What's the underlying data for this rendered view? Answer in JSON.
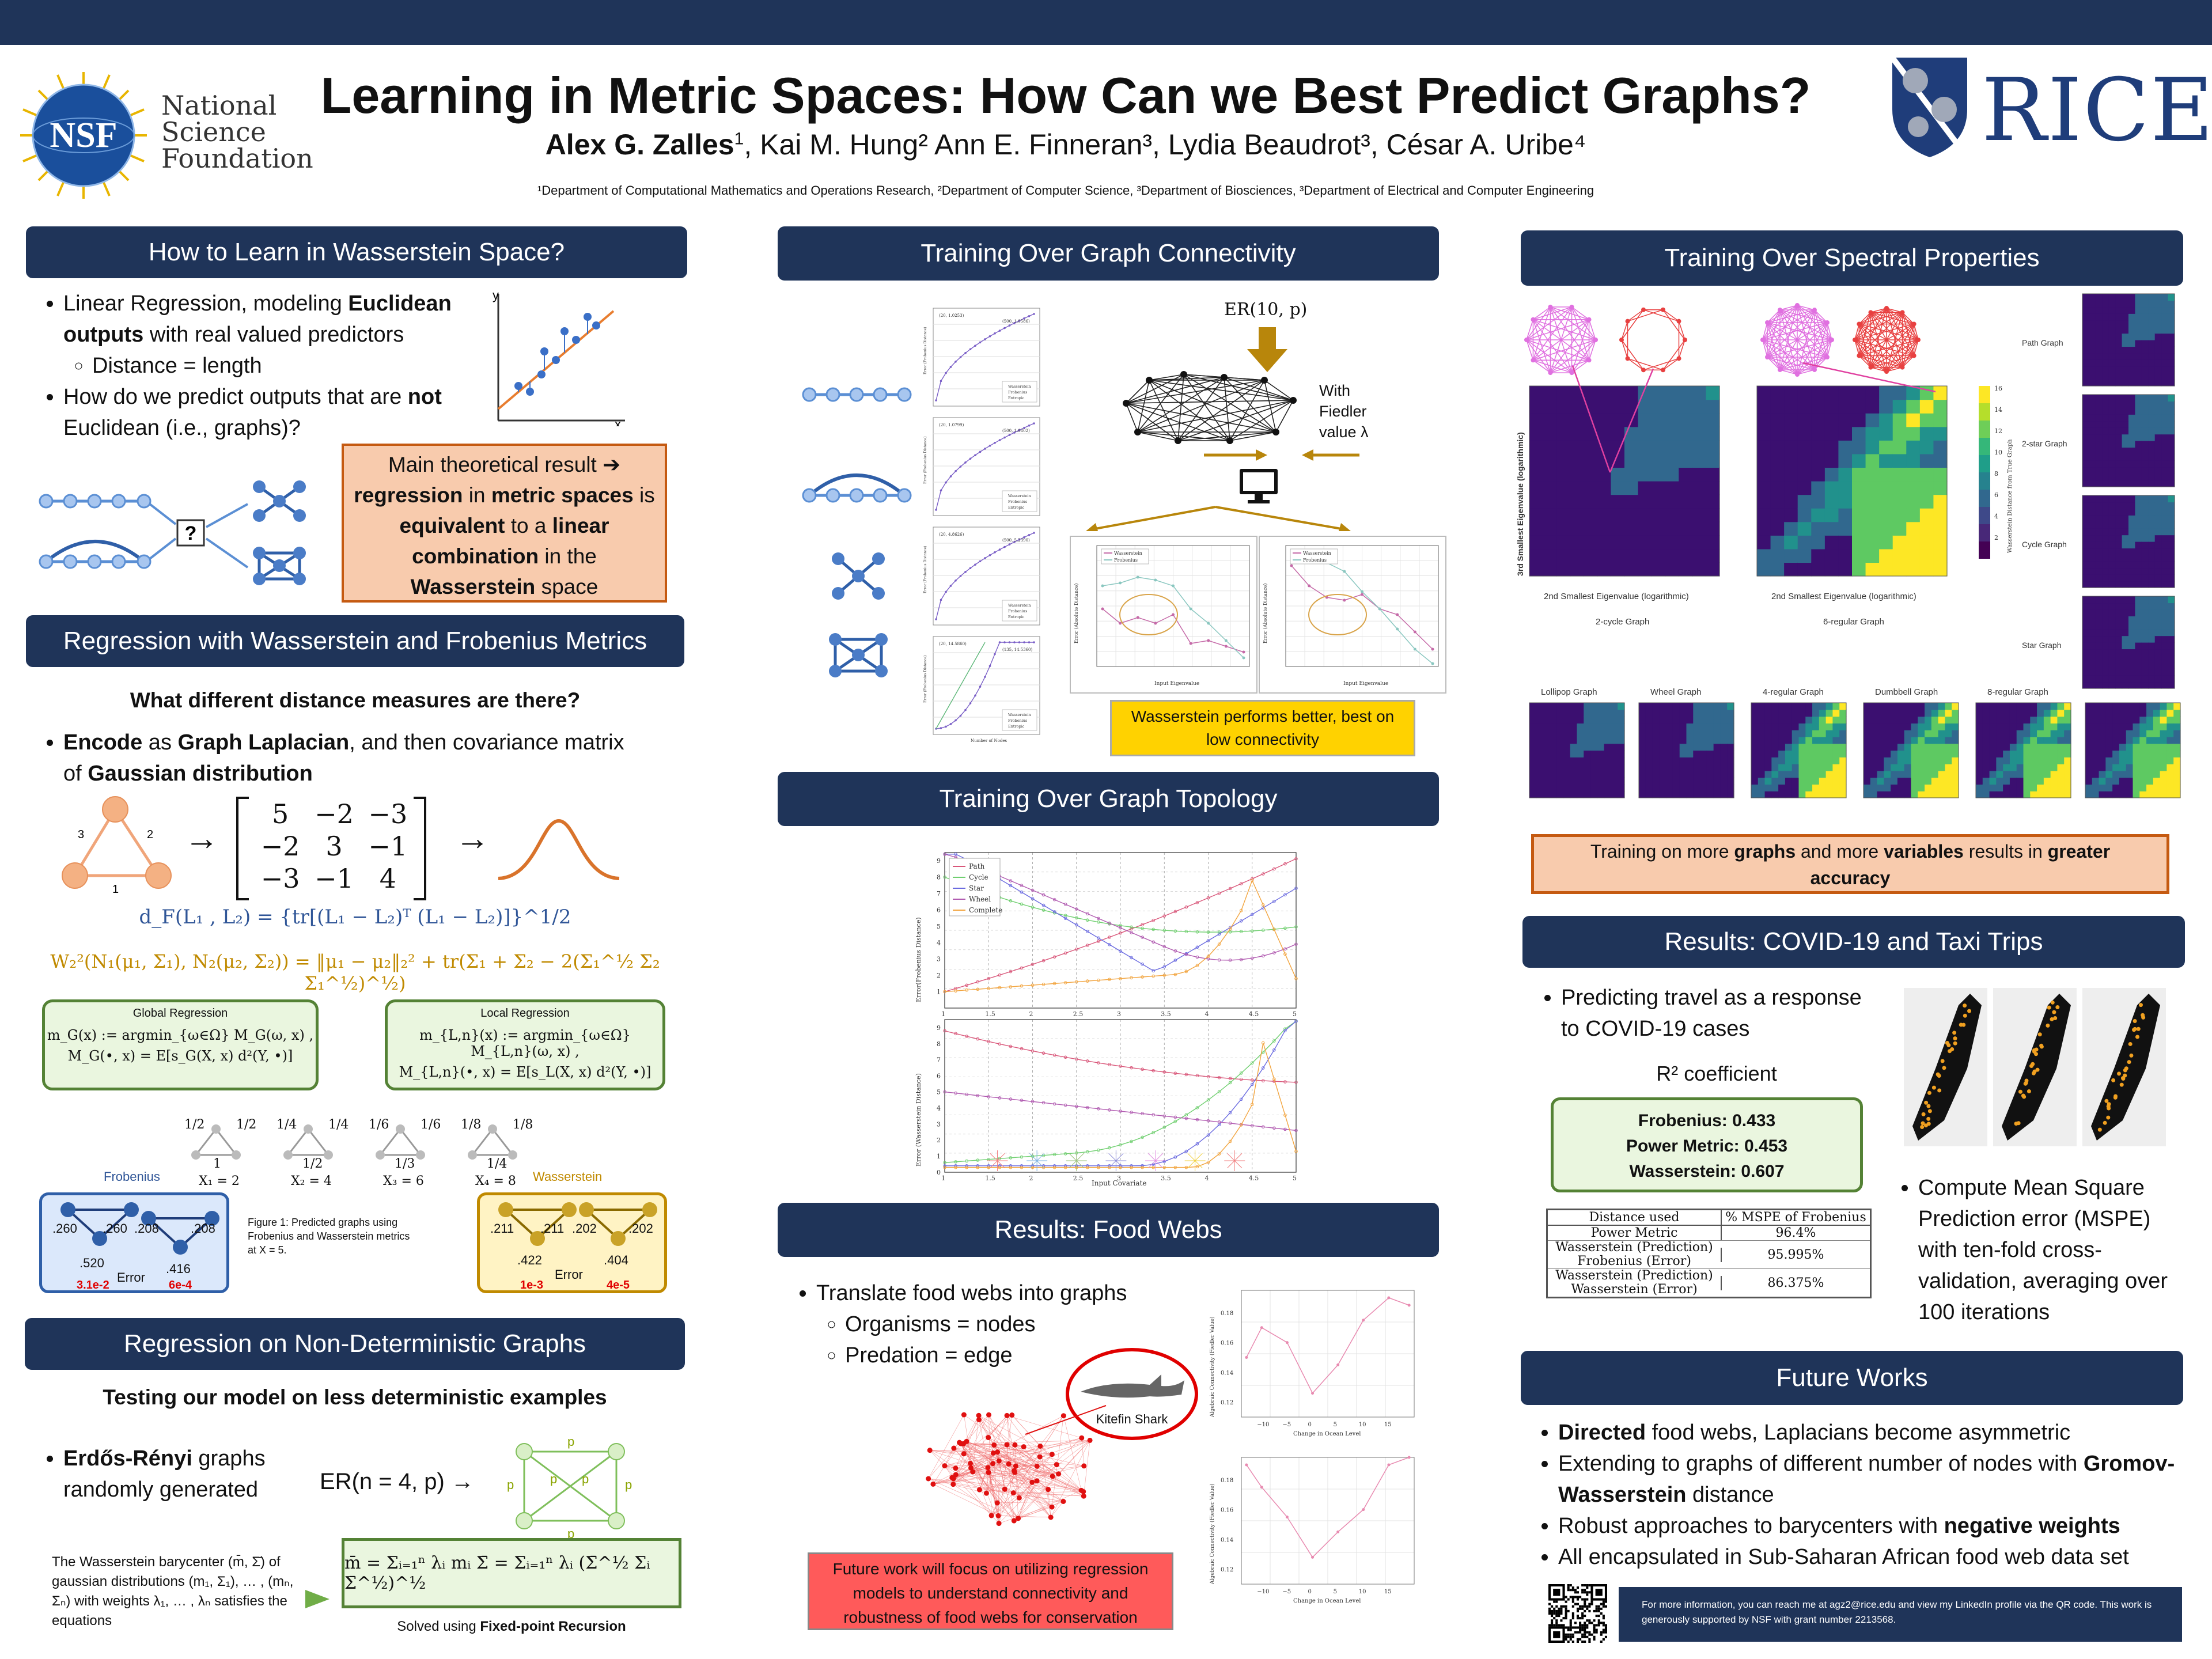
{
  "title": "Learning in Metric Spaces: How Can we Best Predict Graphs?",
  "authors": {
    "first": "Alex G. Zalles",
    "first_sup": "1",
    "rest": ", Kai M. Hung² Ann E. Finneran³, Lydia Beaudrot³, César A. Uribe⁴"
  },
  "affiliations": "¹Department of Computational Mathematics and Operations Research, ²Department of Computer Science, ³Department of Biosciences, ³Department of Electrical and Computer Engineering",
  "logos": {
    "nsf_mark": "NSF",
    "nsf_text": [
      "National",
      "Science",
      "Foundation"
    ],
    "rice": "RICE"
  },
  "sec1": {
    "header": "How to Learn in Wasserstein Space?",
    "b1_pre": "Linear Regression, modeling ",
    "b1_bold1": "Euclidean outputs",
    "b1_post": " with real valued predictors",
    "b1_sub": "Distance = length",
    "b2_pre": "How do we predict outputs that are ",
    "b2_bold": "not",
    "b2_post": " Euclidean (i.e., graphs)?",
    "axis_y": "y",
    "axis_x": "x",
    "qmark": "?",
    "result": {
      "l1": "Main theoretical result ➔",
      "l2a": "regression",
      "l2b": " in ",
      "l2c": "metric spaces",
      "l2d": " is",
      "l3": "equivalent",
      "l3b": " to a ",
      "l3c": "linear",
      "l4": "combination",
      "l4b": " in the",
      "l5": "Wasserstein",
      "l5b": " space"
    }
  },
  "sec2": {
    "header": "Regression with Wasserstein and Frobenius Metrics",
    "question": "What different distance measures are there?",
    "b1_a": "Encode",
    "b1_b": " as ",
    "b1_c": "Graph Laplacian",
    "b1_d": ", and then covariance matrix",
    "b1_e": "of ",
    "b1_f": "Gaussian distribution",
    "tri_labels": [
      "3",
      "2",
      "1"
    ],
    "matrix": [
      [
        "5",
        "−2",
        "−3"
      ],
      [
        "−2",
        "3",
        "−1"
      ],
      [
        "−3",
        "−1",
        "4"
      ]
    ],
    "arrow": "→",
    "eq_frob": "d_F(L₁ , L₂) = {tr[(L₁ − L₂)ᵀ (L₁ − L₂)]}^1/2",
    "eq_wass": "W₂²(N₁(μ₁, Σ₁), N₂(μ₂, Σ₂)) = ‖μ₁ − μ₂‖₂² + tr(Σ₁ + Σ₂ − 2(Σ₁^½ Σ₂ Σ₁^½)^½)",
    "global_title": "Global Regression",
    "global_l1": "m_G(x) := argmin_{ω∈Ω} M_G(ω, x) ,",
    "global_l2": "M_G(•, x) = E[s_G(X, x) d²(Y, •)]",
    "local_title": "Local Regression",
    "local_l1": "m_{L,n}(x) := argmin_{ω∈Ω} M_{L,n}(ω, x) ,",
    "local_l2": "M_{L,n}(•, x) = E[s_L(X, x) d²(Y, •)]",
    "xvals": [
      {
        "a": "1/2",
        "b": "1/2",
        "c": "1",
        "x": "X₁ = 2"
      },
      {
        "a": "1/4",
        "b": "1/4",
        "c": "1/2",
        "x": "X₂ = 4"
      },
      {
        "a": "1/6",
        "b": "1/6",
        "c": "1/3",
        "x": "X₃ = 6"
      },
      {
        "a": "1/8",
        "b": "1/8",
        "c": "1/4",
        "x": "X₄ = 8"
      }
    ],
    "frob_label": "Frobenius",
    "wass_label": "Wasserstein",
    "frob_vals": [
      ".260",
      ".260",
      ".520",
      ".208",
      ".208",
      ".416"
    ],
    "wass_vals": [
      ".211",
      ".211",
      ".422",
      ".202",
      ".202",
      ".404"
    ],
    "frob_err": [
      "3.1e-2",
      "6e-4"
    ],
    "wass_err": [
      "1e-3",
      "4e-5"
    ],
    "error_label": "Error",
    "caption": "Figure 1: Predicted graphs using Frobenius and Wasserstein metrics at X = 5."
  },
  "sec3": {
    "header": "Regression on Non-Deterministic Graphs",
    "sub": "Testing our model on less deterministic examples",
    "b1_bold": "Erdős-Rényi",
    "b1_post": " graphs randomly generated",
    "er": "ER(n = 4, p) →",
    "p": "p",
    "bary_text": "The Wasserstein barycenter (m̄, Σ̄) of gaussian distributions (m₁, Σ₁), … , (mₙ, Σₙ) with weights λ₁, … , λₙ  satisfies the equations",
    "bary_eq": "m̄ = Σᵢ₌₁ⁿ λᵢ mᵢ    Σ̄ = Σᵢ₌₁ⁿ λᵢ (Σ̄^½ Σᵢ Σ̄^½)^½",
    "solved_pre": "Solved using ",
    "solved_bold": "Fixed-point Recursion"
  },
  "sec4": {
    "header": "Training Over Graph Connectivity",
    "er": "ER(10, p)",
    "with": "With",
    "fiedler": "Fiedler",
    "value": "value λ",
    "plot_labels": [
      "(20, 1.0253)",
      "(500, 1.0586)",
      "(20, 1.0799)",
      "(500, 1.0802)",
      "(20, 4.8626)",
      "(500, 5.2390)",
      "(20, 14.5860)",
      "(135, 14.5360)"
    ],
    "legend": [
      "Wasserstein",
      "Frobenius",
      "Entropic"
    ],
    "xlab_nodes": "Number of Nodes",
    "ylab_err": "Error (Frobenius Distance)",
    "xlab_eig": "Input Eigenvalue",
    "ylab_abs": "Error (Absolute Distance)",
    "callout": "Wasserstein performs better, best on low connectivity"
  },
  "sec5": {
    "header": "Training Over Graph Topology",
    "legend": [
      "Path",
      "Cycle",
      "Star",
      "Wheel",
      "Complete"
    ],
    "ylab1": "Error(Frobenius Distance)",
    "ylab2": "Error (Wasserstein Distance)",
    "xlab": "Input Covariate",
    "xticks": [
      "1",
      "1.5",
      "2",
      "2.5",
      "3",
      "3.5",
      "4",
      "4.5",
      "5"
    ],
    "yticks1": [
      "1",
      "2",
      "3",
      "4",
      "5",
      "6",
      "7",
      "8",
      "9"
    ],
    "yticks2": [
      "0",
      "1",
      "2",
      "3",
      "4",
      "5",
      "6",
      "7",
      "8",
      "9"
    ]
  },
  "sec6": {
    "header": "Results: Food Webs",
    "b1": "Translate food webs into graphs",
    "b2": "Organisms = nodes",
    "b3": "Predation = edge",
    "shark": "Kitefin Shark",
    "xlab": "Change in Ocean Level",
    "ylab": "Algebraic Connectivity (Fiedler Value)",
    "xticks": [
      "−10",
      "−5",
      "0",
      "5",
      "10",
      "15"
    ],
    "yticks": [
      "0.18",
      "0.16",
      "0.14",
      "0.12"
    ],
    "future": "Future work will focus on utilizing regression models to understand connectivity and robustness of food webs for conservation"
  },
  "sec7": {
    "header": "Training Over Spectral Properties",
    "ylab": "3rd Smallest Eigenvalue (logarithmic)",
    "xlab1": "2nd Smallest Eigenvalue (logarithmic)",
    "xlab2": "2nd Smallest Eigenvalue (logarithmic)",
    "title1": "2-cycle Graph",
    "title2": "6-regular Graph",
    "cbar_label": "Wasserstein Distance from True Graph",
    "cbar_ticks": [
      "16",
      "14",
      "12",
      "10",
      "8",
      "6",
      "4",
      "2"
    ],
    "side": [
      "Path Graph",
      "2-star Graph",
      "Cycle Graph",
      "Star Graph"
    ],
    "bottom": [
      "Lollipop Graph",
      "Wheel Graph",
      "4-regular Graph",
      "Dumbbell Graph",
      "8-regular Graph"
    ],
    "train_a": "Training on more ",
    "train_b": "graphs",
    "train_c": " and more ",
    "train_d": "variables",
    "train_e": " results in ",
    "train_f": "greater",
    "train_g": "accuracy"
  },
  "sec8": {
    "header": "Results: COVID-19 and Taxi Trips",
    "b1": "Predicting travel as a response to COVID-19 cases",
    "r2": "R² coefficient",
    "r2_vals": [
      "Frobenius: 0.433",
      "Power Metric: 0.453",
      "Wasserstein: 0.607"
    ],
    "table_head": [
      "Distance used",
      "% MSPE of Frobenius"
    ],
    "table_rows": [
      [
        "Power Metric",
        "96.4%"
      ],
      [
        "Wasserstein (Prediction) Frobenius (Error)",
        "95.995%"
      ],
      [
        "Wasserstein (Prediction) Wasserstein (Error)",
        "86.375%"
      ]
    ],
    "b2": "Compute Mean Square Prediction error (MSPE) with ten-fold cross-validation, averaging over 100 iterations"
  },
  "sec9": {
    "header": "Future Works",
    "b1a": "Directed",
    "b1b": " food webs, Laplacians become asymmetric",
    "b2a": "Extending to graphs of different number of nodes with ",
    "b2b": "Gromov-Wasserstein",
    "b2c": " distance",
    "b3a": "Robust approaches to barycenters with ",
    "b3b": "negative weights",
    "b4": "All encapsulated in Sub-Saharan African food web data set",
    "contact": "For more information, you can reach me at agz2@rice.edu and view my LinkedIn profile via the QR code. This work is generously supported by NSF with grant number 2213568."
  },
  "colors": {
    "navy": "#1f3459",
    "salmon": "#f8cbad",
    "orange_border": "#c55a11",
    "green_bg": "#eaf6df",
    "green_border": "#548235",
    "gold": "#ffd200",
    "red_box": "#ff5a5a",
    "heat_dark": "#3b0f70",
    "heat_teal": "#21918c",
    "heat_yellow": "#fde725"
  },
  "icons": [
    "nsf-logo",
    "rice-shield",
    "computer-icon",
    "down-arrow-icon",
    "shark-image",
    "qr-code"
  ]
}
